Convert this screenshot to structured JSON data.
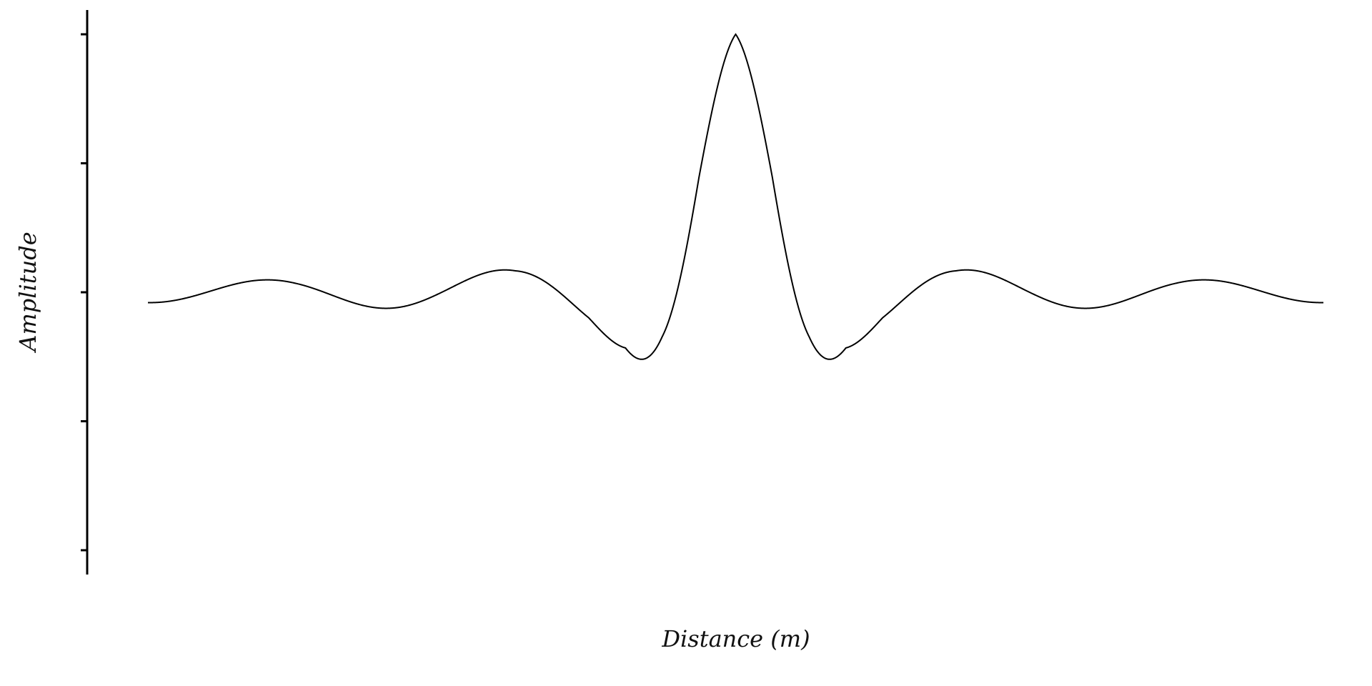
{
  "chart_data": {
    "type": "line",
    "title": "",
    "xlabel": "Distance (m)",
    "ylabel": "Amplitude",
    "xlim": [
      -4,
      4
    ],
    "ylim": [
      -1,
      1
    ],
    "y_ticks": [
      -1,
      -0.5,
      0,
      0.5,
      1
    ],
    "grid": false,
    "legend": "none",
    "series": [
      {
        "x": [
          -4.0,
          -3.5,
          -3.0,
          -2.5,
          -2.0,
          -1.5,
          -1.0,
          -0.75,
          -0.5,
          -0.25,
          0.0,
          0.25,
          0.5,
          0.75,
          1.0,
          1.5,
          2.0,
          2.5,
          3.0,
          3.5,
          4.0
        ],
        "envelope": [
          0.04,
          0.045,
          0.05,
          0.06,
          0.07,
          0.09,
          0.14,
          0.22,
          0.45,
          0.8,
          1.0,
          0.8,
          0.45,
          0.22,
          0.14,
          0.09,
          0.07,
          0.06,
          0.05,
          0.045,
          0.04
        ],
        "oscillations_per_unit": 10,
        "color": "#000000"
      }
    ]
  }
}
